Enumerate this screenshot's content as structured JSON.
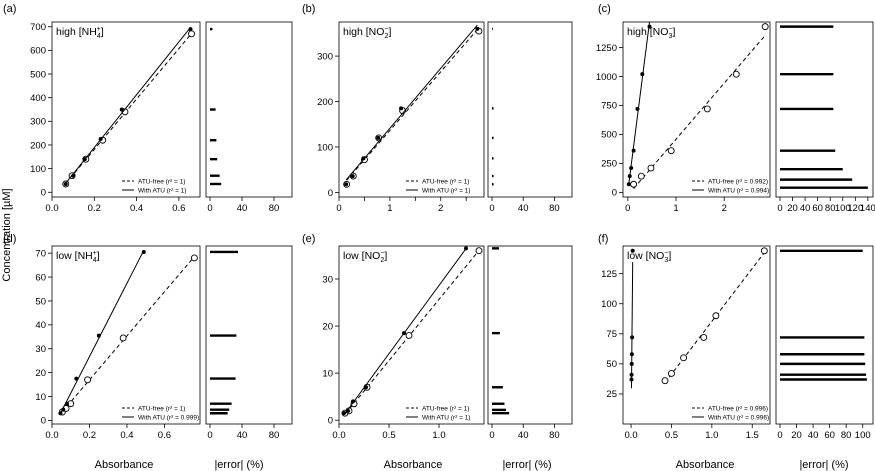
{
  "figure": {
    "ylabel": "Concentration [µM]",
    "xlabel_main": "Absorbance",
    "xlabel_error": "|error| (%)"
  },
  "chart_data": [
    {
      "type": "scatter",
      "panel": "(a)",
      "title": "high [NH4+]",
      "title_parts": {
        "base": "high [NH",
        "sub": "4",
        "sup": "+",
        "close": "]"
      },
      "xlabel": "Absorbance",
      "ylabel": "Concentration [µM]",
      "xlim": [
        0,
        0.7
      ],
      "ylim": [
        -20,
        720
      ],
      "xticks": [
        0,
        0.2,
        0.4,
        0.6
      ],
      "xticklabels": [
        "0.0",
        "0.2",
        "0.4",
        "0.6"
      ],
      "yticks": [
        0,
        100,
        200,
        300,
        400,
        500,
        600,
        700
      ],
      "series": [
        {
          "name": "ATU-free",
          "r2": "1",
          "marker": "open-circle",
          "line": "dashed",
          "x": [
            0.065,
            0.095,
            0.16,
            0.24,
            0.345,
            0.66
          ],
          "y": [
            35,
            70,
            140,
            220,
            340,
            670
          ]
        },
        {
          "name": "With ATU",
          "r2": "1",
          "marker": "filled-circle",
          "line": "solid",
          "x": [
            0.065,
            0.1,
            0.155,
            0.23,
            0.33,
            0.655
          ],
          "y": [
            35,
            70,
            140,
            225,
            350,
            690
          ]
        }
      ],
      "legend": {
        "position": "bottom-right",
        "entries": [
          "ATU-free (r² = 1)",
          "With ATU (r² = 1)"
        ]
      },
      "error": {
        "xlim": [
          0,
          100
        ],
        "xticks": [
          0,
          40,
          80
        ],
        "bars": [
          {
            "y": 35,
            "value": 14
          },
          {
            "y": 70,
            "value": 12
          },
          {
            "y": 140,
            "value": 9
          },
          {
            "y": 220,
            "value": 8
          },
          {
            "y": 350,
            "value": 7
          },
          {
            "y": 690,
            "value": 3
          }
        ]
      }
    },
    {
      "type": "scatter",
      "panel": "(b)",
      "title": "high [NO2-]",
      "title_parts": {
        "base": "high [NO",
        "sub": "2",
        "sup": "−",
        "close": "]"
      },
      "xlabel": "Absorbance",
      "ylabel": "Concentration [µM]",
      "xlim": [
        0,
        2.85
      ],
      "ylim": [
        -10,
        375
      ],
      "xticks": [
        0,
        0.5,
        1,
        1.5,
        2,
        2.5
      ],
      "xticklabels": [
        "0",
        "",
        "1",
        "",
        "2",
        ""
      ],
      "yticks": [
        0,
        100,
        200,
        300
      ],
      "series": [
        {
          "name": "ATU-free",
          "r2": "1",
          "marker": "open-circle",
          "line": "dashed",
          "x": [
            0.15,
            0.28,
            0.5,
            0.78,
            1.25,
            2.75
          ],
          "y": [
            18,
            36,
            72,
            120,
            180,
            355
          ]
        },
        {
          "name": "With ATU",
          "r2": "1",
          "marker": "filled-circle",
          "line": "solid",
          "x": [
            0.14,
            0.27,
            0.48,
            0.77,
            1.22,
            2.72
          ],
          "y": [
            18,
            36,
            75,
            120,
            185,
            360
          ]
        }
      ],
      "legend": {
        "position": "bottom-right",
        "entries": [
          "ATU-free (r² = 1)",
          "With ATU (r² = 1)"
        ]
      },
      "error": {
        "xlim": [
          0,
          100
        ],
        "xticks": [
          0,
          40,
          80
        ],
        "bars": [
          {
            "y": 18,
            "value": 2
          },
          {
            "y": 36,
            "value": 2
          },
          {
            "y": 75,
            "value": 2
          },
          {
            "y": 120,
            "value": 2
          },
          {
            "y": 185,
            "value": 2
          },
          {
            "y": 360,
            "value": 1
          }
        ]
      }
    },
    {
      "type": "scatter",
      "panel": "(c)",
      "title": "high [NO3-]",
      "title_parts": {
        "base": "high [NO",
        "sub": "3",
        "sup": "−",
        "close": "]"
      },
      "xlabel": "Absorbance",
      "ylabel": "Concentration [µM]",
      "xlim": [
        -0.1,
        2.95
      ],
      "ylim": [
        -40,
        1470
      ],
      "xticks": [
        0,
        1,
        2
      ],
      "xticklabels": [
        "0",
        "1",
        "2"
      ],
      "yticks": [
        0,
        250,
        500,
        750,
        1000,
        1250
      ],
      "series": [
        {
          "name": "ATU-free",
          "r2": "0.992",
          "marker": "open-circle",
          "line": "dashed",
          "x": [
            0.12,
            0.28,
            0.48,
            0.9,
            1.65,
            2.25,
            2.85
          ],
          "y": [
            70,
            140,
            210,
            360,
            720,
            1020,
            1430
          ]
        },
        {
          "name": "With ATU",
          "r2": "0.994",
          "marker": "filled-circle",
          "line": "solid",
          "x": [
            0.02,
            0.04,
            0.07,
            0.12,
            0.2,
            0.3,
            0.45
          ],
          "y": [
            70,
            140,
            210,
            360,
            720,
            1020,
            1430
          ]
        }
      ],
      "legend": {
        "position": "bottom-right",
        "entries": [
          "ATU-free (r² = 0.992)",
          "With ATU (r² = 0.994)"
        ]
      },
      "error": {
        "xlim": [
          0,
          145
        ],
        "xticks": [
          0,
          20,
          40,
          60,
          80,
          100,
          120,
          140
        ],
        "bars": [
          {
            "y": 40,
            "value": 140
          },
          {
            "y": 110,
            "value": 115
          },
          {
            "y": 200,
            "value": 100
          },
          {
            "y": 360,
            "value": 88
          },
          {
            "y": 720,
            "value": 85
          },
          {
            "y": 1020,
            "value": 85
          },
          {
            "y": 1430,
            "value": 85
          }
        ]
      }
    },
    {
      "type": "scatter",
      "panel": "(d)",
      "title": "low [NH4+]",
      "title_parts": {
        "base": "low [NH",
        "sub": "4",
        "sup": "+",
        "close": "]"
      },
      "xlabel": "Absorbance",
      "ylabel": "Concentration [µM]",
      "xlim": [
        0,
        0.79
      ],
      "ylim": [
        -1.5,
        73
      ],
      "xticks": [
        0,
        0.2,
        0.4,
        0.6
      ],
      "xticklabels": [
        "0.0",
        "0.2",
        "0.4",
        "0.6"
      ],
      "yticks": [
        0,
        10,
        20,
        30,
        40,
        50,
        60,
        70
      ],
      "series": [
        {
          "name": "ATU-free",
          "r2": "1",
          "marker": "open-circle",
          "line": "dashed",
          "x": [
            0.055,
            0.075,
            0.1,
            0.19,
            0.38,
            0.76
          ],
          "y": [
            3.5,
            5,
            7,
            17,
            34.5,
            68
          ]
        },
        {
          "name": "With ATU",
          "r2": "1",
          "marker": "filled-circle",
          "line": "solid",
          "x": [
            0.045,
            0.06,
            0.08,
            0.13,
            0.25,
            0.49
          ],
          "y": [
            3,
            4.5,
            7,
            17.5,
            35.5,
            70.5
          ]
        }
      ],
      "legend": {
        "position": "bottom-right",
        "entries": [
          "ATU-free (r² = 1)",
          "With ATU (r² = 0.999)"
        ]
      },
      "error": {
        "xlim": [
          0,
          100
        ],
        "xticks": [
          0,
          40,
          80
        ],
        "bars": [
          {
            "y": 3,
            "value": 22
          },
          {
            "y": 4.5,
            "value": 24
          },
          {
            "y": 7,
            "value": 27
          },
          {
            "y": 17.5,
            "value": 32
          },
          {
            "y": 35.5,
            "value": 33
          },
          {
            "y": 70.5,
            "value": 35
          }
        ]
      }
    },
    {
      "type": "scatter",
      "panel": "(e)",
      "title": "low [NO2-]",
      "title_parts": {
        "base": "low [NO",
        "sub": "2",
        "sup": "−",
        "close": "]"
      },
      "xlabel": "Absorbance",
      "ylabel": "Concentration [µM]",
      "xlim": [
        0,
        1.45
      ],
      "ylim": [
        -0.8,
        37
      ],
      "xticks": [
        0,
        0.5,
        1
      ],
      "xticklabels": [
        "0.0",
        "0.5",
        "1.0"
      ],
      "yticks": [
        0,
        10,
        20,
        30
      ],
      "series": [
        {
          "name": "ATU-free",
          "r2": "1",
          "marker": "open-circle",
          "line": "dashed",
          "x": [
            0.06,
            0.1,
            0.15,
            0.28,
            0.7,
            1.4
          ],
          "y": [
            1.5,
            2,
            3.5,
            7,
            18,
            36
          ]
        },
        {
          "name": "With ATU",
          "r2": "1",
          "marker": "filled-circle",
          "line": "solid",
          "x": [
            0.05,
            0.09,
            0.14,
            0.27,
            0.65,
            1.27
          ],
          "y": [
            1.5,
            2,
            4,
            7,
            18.5,
            36.5
          ]
        }
      ],
      "legend": {
        "position": "bottom-right",
        "entries": [
          "ATU-free (r² = 1)",
          "With ATU (r² = 1)"
        ]
      },
      "error": {
        "xlim": [
          0,
          100
        ],
        "xticks": [
          0,
          40,
          80
        ],
        "bars": [
          {
            "y": 1.5,
            "value": 22
          },
          {
            "y": 2.2,
            "value": 18
          },
          {
            "y": 3.5,
            "value": 16
          },
          {
            "y": 7,
            "value": 14
          },
          {
            "y": 18.5,
            "value": 10
          },
          {
            "y": 36.5,
            "value": 9
          }
        ]
      }
    },
    {
      "type": "scatter",
      "panel": "(f)",
      "title": "low [NO3-]",
      "title_parts": {
        "base": "low [NO",
        "sub": "3",
        "sup": "−",
        "close": "]"
      },
      "xlabel": "Absorbance",
      "ylabel": "Concentration [µM]",
      "xlim": [
        -0.1,
        1.72
      ],
      "ylim": [
        0,
        148
      ],
      "xticks": [
        0,
        0.5,
        1,
        1.5
      ],
      "xticklabels": [
        "0.0",
        "0.5",
        "1.0",
        "1.5"
      ],
      "yticks": [
        25,
        50,
        75,
        100,
        125
      ],
      "series": [
        {
          "name": "ATU-free",
          "r2": "0.996",
          "marker": "open-circle",
          "line": "dashed",
          "x": [
            0.42,
            0.5,
            0.65,
            0.9,
            1.05,
            1.65
          ],
          "y": [
            36,
            42,
            55,
            72,
            90,
            144
          ]
        },
        {
          "name": "With ATU",
          "r2": "0.996",
          "marker": "filled-circle",
          "line": "solid",
          "x": [
            0.005,
            0.006,
            0.008,
            0.01,
            0.013,
            0.02
          ],
          "y": [
            37,
            41,
            50,
            58,
            72,
            144
          ]
        }
      ],
      "legend": {
        "position": "bottom-right",
        "entries": [
          "ATU-free (r² = 0.996)",
          "With ATU (r² = 0.996)"
        ]
      },
      "error": {
        "xlim": [
          0,
          110
        ],
        "xticks": [
          0,
          20,
          40,
          60,
          80,
          100
        ],
        "bars": [
          {
            "y": 37,
            "value": 105
          },
          {
            "y": 41,
            "value": 104
          },
          {
            "y": 50,
            "value": 103
          },
          {
            "y": 58,
            "value": 102
          },
          {
            "y": 72,
            "value": 102
          },
          {
            "y": 144,
            "value": 100
          }
        ]
      }
    }
  ]
}
